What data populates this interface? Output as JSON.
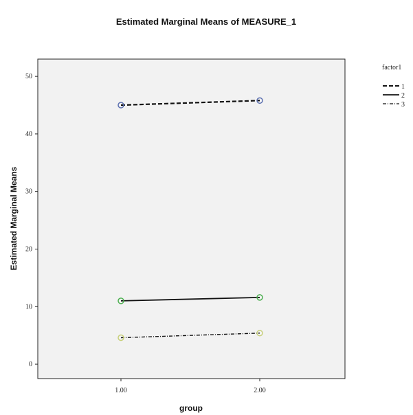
{
  "chart_data": {
    "type": "line",
    "title": "Estimated Marginal Means of MEASURE_1",
    "xlabel": "group",
    "ylabel": "Estimated Marginal Means",
    "categories": [
      "1.00",
      "2.00"
    ],
    "y_ticks": [
      "0",
      "10",
      "20",
      "30",
      "40",
      "50"
    ],
    "ylim": [
      -2.5,
      53
    ],
    "legend": {
      "title": "factor1",
      "placement": "right"
    },
    "series": [
      {
        "name": "1",
        "values": [
          45.0,
          45.8
        ],
        "color": "#5a6fb0",
        "style": "dashed"
      },
      {
        "name": "2",
        "values": [
          11.0,
          11.6
        ],
        "color": "#4caf50",
        "style": "solid"
      },
      {
        "name": "3",
        "values": [
          4.6,
          5.4
        ],
        "color": "#c8d07a",
        "style": "dashdot"
      }
    ],
    "grid": false
  }
}
